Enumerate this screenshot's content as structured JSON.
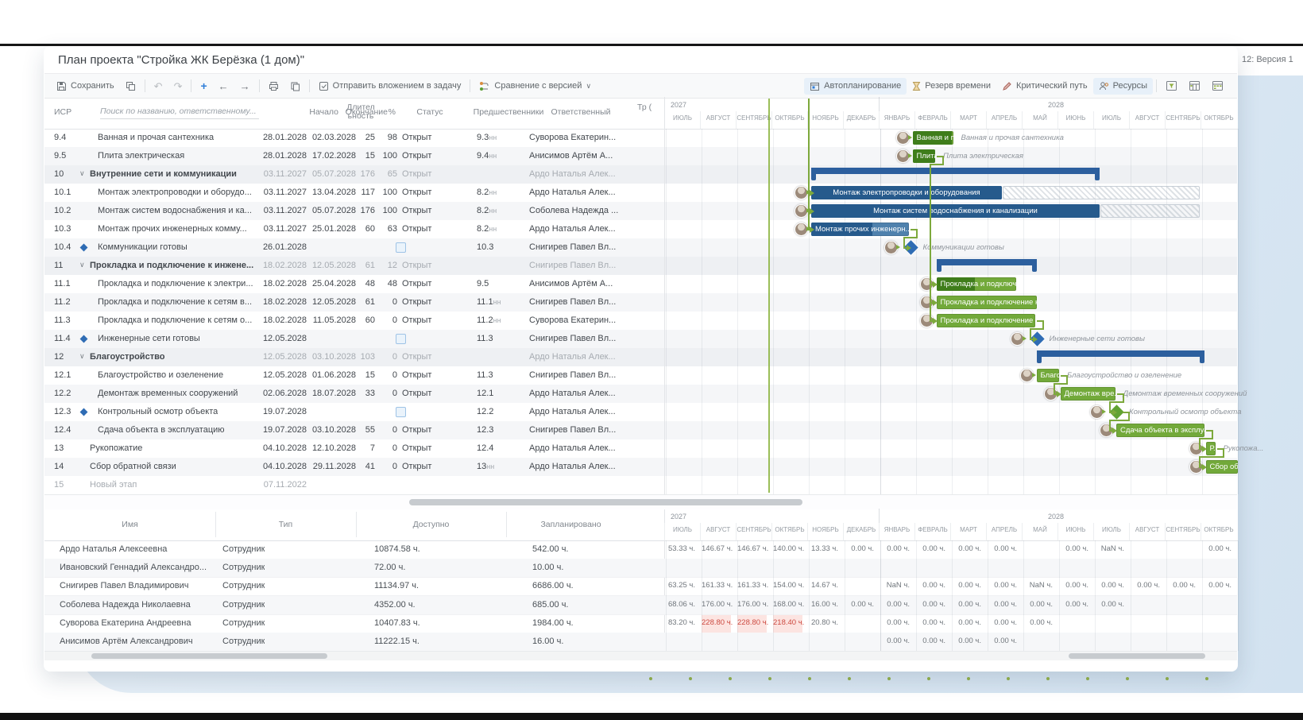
{
  "page": {
    "version_badge": "12: Версия 1"
  },
  "window": {
    "title": "План проекта \"Стройка ЖК Берёзка (1 дом)\""
  },
  "toolbar": {
    "save_label": "Сохранить",
    "send_attachment_label": "Отправить вложением в задачу",
    "compare_label": "Сравнение с версией",
    "autoplan_label": "Автопланирование",
    "reserve_label": "Резерв времени",
    "critical_path_label": "Критический путь",
    "resources_label": "Ресурсы"
  },
  "task_table": {
    "columns": {
      "wbs": "ИСР",
      "search_placeholder": "Поиск по названию, ответственному...",
      "start": "Начало",
      "finish": "Окончание",
      "duration": "Длител ьность",
      "percent": "%",
      "status": "Статус",
      "predecessors": "Предшественники",
      "owner": "Ответственный",
      "labor": "Тр ("
    },
    "rows": [
      {
        "wbs": "9.4",
        "kind": "task",
        "lvl": 2,
        "name": "Ванная и прочая сантехника",
        "start": "28.01.2028",
        "finish": "02.03.2028",
        "dur": "25",
        "pct": "98",
        "status": "Открыт",
        "pred": "9.3",
        "sfx": true,
        "owner": "Суворова Екатерин...",
        "stripe": false,
        "bar": {
          "t": "bar",
          "c": "g",
          "l": "Ванная и п...",
          "a": "Ванная и прочая сантехника"
        }
      },
      {
        "wbs": "9.5",
        "kind": "task",
        "lvl": 2,
        "name": "Плита электрическая",
        "start": "28.01.2028",
        "finish": "17.02.2028",
        "dur": "15",
        "pct": "100",
        "status": "Открыт",
        "pred": "9.4",
        "sfx": true,
        "owner": "Анисимов Артём А...",
        "stripe": true,
        "bar": {
          "t": "bar",
          "c": "g",
          "l": "Плита...",
          "a": "Плита электрическая"
        }
      },
      {
        "wbs": "10",
        "kind": "summary",
        "lvl": 1,
        "name": "Внутренние сети и коммуникации",
        "start": "03.11.2027",
        "finish": "05.07.2028",
        "dur": "176",
        "pct": "65",
        "status": "Открыт",
        "pred": "",
        "sfx": false,
        "owner": "Ардо Наталья Алек...",
        "stripe": false,
        "bar": {
          "t": "sum"
        }
      },
      {
        "wbs": "10.1",
        "kind": "task",
        "lvl": 2,
        "name": "Монтаж электропроводки и оборудо...",
        "start": "03.11.2027",
        "finish": "13.04.2028",
        "dur": "117",
        "pct": "100",
        "status": "Открыт",
        "pred": "8.2",
        "sfx": true,
        "owner": "Ардо Наталья Алек...",
        "stripe": false,
        "bar": {
          "t": "bar",
          "c": "b",
          "l": "Монтаж электропроводки и оборудования",
          "h": "27.09.2028"
        }
      },
      {
        "wbs": "10.2",
        "kind": "task",
        "lvl": 2,
        "name": "Монтаж систем водоснабжения и ка...",
        "start": "03.11.2027",
        "finish": "05.07.2028",
        "dur": "176",
        "pct": "100",
        "status": "Открыт",
        "pred": "8.2",
        "sfx": true,
        "owner": "Соболева Надежда ...",
        "stripe": true,
        "bar": {
          "t": "bar",
          "c": "b",
          "l": "Монтаж систем водоснабжения и канализации",
          "h": "27.09.2028"
        }
      },
      {
        "wbs": "10.3",
        "kind": "task",
        "lvl": 2,
        "name": "Монтаж прочих инженерных комму...",
        "start": "03.11.2027",
        "finish": "25.01.2028",
        "dur": "60",
        "pct": "63",
        "status": "Открыт",
        "pred": "8.2",
        "sfx": true,
        "owner": "Ардо Наталья Алек...",
        "stripe": false,
        "bar": {
          "t": "bar",
          "c": "b",
          "l": "Монтаж прочих инженерн..."
        }
      },
      {
        "wbs": "10.4",
        "kind": "milestone",
        "lvl": 2,
        "name": "Коммуникации готовы",
        "start": "26.01.2028",
        "finish": "",
        "dur": "",
        "pct": "",
        "status": "",
        "pred": "10.3",
        "sfx": false,
        "owner": "Снигирев Павел Вл...",
        "stripe": true,
        "bar": {
          "t": "mile",
          "c": "b",
          "a": "Коммуникации готовы"
        }
      },
      {
        "wbs": "11",
        "kind": "summary",
        "lvl": 1,
        "name": "Прокладка и подключение к инжене...",
        "start": "18.02.2028",
        "finish": "12.05.2028",
        "dur": "61",
        "pct": "12",
        "status": "Открыт",
        "pred": "",
        "sfx": false,
        "owner": "Снигирев Павел Вл...",
        "stripe": false,
        "bar": {
          "t": "sum"
        }
      },
      {
        "wbs": "11.1",
        "kind": "task",
        "lvl": 2,
        "name": "Прокладка и подключение к электри...",
        "start": "18.02.2028",
        "finish": "25.04.2028",
        "dur": "48",
        "pct": "48",
        "status": "Открыт",
        "pred": "9.5",
        "sfx": false,
        "owner": "Анисимов Артём А...",
        "stripe": false,
        "bar": {
          "t": "bar",
          "c": "g",
          "l": "Прокладка и подключ..."
        }
      },
      {
        "wbs": "11.2",
        "kind": "task",
        "lvl": 2,
        "name": "Прокладка и подключение к сетям в...",
        "start": "18.02.2028",
        "finish": "12.05.2028",
        "dur": "61",
        "pct": "0",
        "status": "Открыт",
        "pred": "11.1",
        "sfx": true,
        "owner": "Снигирев Павел Вл...",
        "stripe": true,
        "bar": {
          "t": "bar",
          "c": "g",
          "l": "Прокладка и подключение к..."
        }
      },
      {
        "wbs": "11.3",
        "kind": "task",
        "lvl": 2,
        "name": "Прокладка и подключение к сетям о...",
        "start": "18.02.2028",
        "finish": "11.05.2028",
        "dur": "60",
        "pct": "0",
        "status": "Открыт",
        "pred": "11.2",
        "sfx": true,
        "owner": "Суворова Екатерин...",
        "stripe": false,
        "bar": {
          "t": "bar",
          "c": "g",
          "l": "Прокладка и подключение ..."
        }
      },
      {
        "wbs": "11.4",
        "kind": "milestone",
        "lvl": 2,
        "name": "Инженерные сети готовы",
        "start": "12.05.2028",
        "finish": "",
        "dur": "",
        "pct": "",
        "status": "",
        "pred": "11.3",
        "sfx": false,
        "owner": "Снигирев Павел Вл...",
        "stripe": true,
        "bar": {
          "t": "mile",
          "c": "b",
          "a": "Инженерные сети готовы"
        }
      },
      {
        "wbs": "12",
        "kind": "summary",
        "lvl": 1,
        "name": "Благоустройство",
        "start": "12.05.2028",
        "finish": "03.10.2028",
        "dur": "103",
        "pct": "0",
        "status": "Открыт",
        "pred": "",
        "sfx": false,
        "owner": "Ардо Наталья Алек...",
        "stripe": false,
        "bar": {
          "t": "sum"
        }
      },
      {
        "wbs": "12.1",
        "kind": "task",
        "lvl": 2,
        "name": "Благоустройство и озеленение",
        "start": "12.05.2028",
        "finish": "01.06.2028",
        "dur": "15",
        "pct": "0",
        "status": "Открыт",
        "pred": "11.3",
        "sfx": false,
        "owner": "Снигирев Павел Вл...",
        "stripe": false,
        "bar": {
          "t": "bar",
          "c": "g",
          "l": "Благо...",
          "a": "Благоустройство и озеленение"
        }
      },
      {
        "wbs": "12.2",
        "kind": "task",
        "lvl": 2,
        "name": "Демонтаж временных сооружений",
        "start": "02.06.2028",
        "finish": "18.07.2028",
        "dur": "33",
        "pct": "0",
        "status": "Открыт",
        "pred": "12.1",
        "sfx": false,
        "owner": "Ардо Наталья Алек...",
        "stripe": true,
        "bar": {
          "t": "bar",
          "c": "g",
          "l": "Демонтаж вре...",
          "a": "Демонтаж временных сооружений"
        }
      },
      {
        "wbs": "12.3",
        "kind": "milestone",
        "lvl": 2,
        "name": "Контрольный осмотр объекта",
        "start": "19.07.2028",
        "finish": "",
        "dur": "",
        "pct": "",
        "status": "",
        "pred": "12.2",
        "sfx": false,
        "owner": "Ардо Наталья Алек...",
        "stripe": false,
        "bar": {
          "t": "mile",
          "c": "g",
          "a": "Контрольный осмотр объекта"
        }
      },
      {
        "wbs": "12.4",
        "kind": "task",
        "lvl": 2,
        "name": "Сдача объекта в эксплуатацию",
        "start": "19.07.2028",
        "finish": "03.10.2028",
        "dur": "55",
        "pct": "0",
        "status": "Открыт",
        "pred": "12.3",
        "sfx": false,
        "owner": "Снигирев Павел Вл...",
        "stripe": true,
        "bar": {
          "t": "bar",
          "c": "g",
          "l": "Сдача объекта в эксплуат..."
        }
      },
      {
        "wbs": "13",
        "kind": "task",
        "lvl": 1,
        "name": "Рукопожатие",
        "start": "04.10.2028",
        "finish": "12.10.2028",
        "dur": "7",
        "pct": "0",
        "status": "Открыт",
        "pred": "12.4",
        "sfx": false,
        "owner": "Ардо Наталья Алек...",
        "stripe": false,
        "bar": {
          "t": "bar",
          "c": "g",
          "l": "Р...",
          "a": "Рукопожа..."
        }
      },
      {
        "wbs": "14",
        "kind": "task",
        "lvl": 1,
        "name": "Сбор обратной связи",
        "start": "04.10.2028",
        "finish": "29.11.2028",
        "dur": "41",
        "pct": "0",
        "status": "Открыт",
        "pred": "13",
        "sfx": true,
        "owner": "Ардо Наталья Алек...",
        "stripe": true,
        "bar": {
          "t": "bar",
          "c": "g",
          "l": "Сбор обрат..."
        }
      },
      {
        "wbs": "15",
        "kind": "new",
        "lvl": 1,
        "name": "Новый этап",
        "start": "07.11.2022",
        "finish": "",
        "dur": "",
        "pct": "",
        "status": "",
        "pred": "",
        "sfx": false,
        "owner": "",
        "stripe": false,
        "bar": null
      }
    ]
  },
  "gantt": {
    "years": [
      {
        "label": "2027",
        "months": [
          "ИЮЛЬ",
          "АВГУСТ",
          "СЕНТЯБРЬ",
          "ОКТЯБРЬ",
          "НОЯБРЬ",
          "ДЕКАБРЬ"
        ]
      },
      {
        "label": "2028",
        "months": [
          "ЯНВАРЬ",
          "ФЕВРАЛЬ",
          "МАРТ",
          "АПРЕЛЬ",
          "МАЙ",
          "ИЮНЬ",
          "ИЮЛЬ",
          "АВГУСТ",
          "СЕНТЯБРЬ",
          "ОКТЯБРЬ"
        ]
      }
    ],
    "connectors": [
      {
        "from": null,
        "x_date": "03.11.2027",
        "targets": [
          "10.1",
          "10.2",
          "10.3"
        ]
      },
      {
        "from": "9.5",
        "targets": [
          "11.1",
          "11.2",
          "11.3"
        ]
      },
      {
        "from": "10.3",
        "targets": [
          "10.4"
        ]
      },
      {
        "from": "11.3",
        "targets": [
          "11.4"
        ]
      },
      {
        "from": "12.1",
        "targets": [
          "12.2"
        ]
      },
      {
        "from": "12.2",
        "targets": [
          "12.3"
        ]
      },
      {
        "from": "12.3",
        "targets": [
          "12.4"
        ]
      },
      {
        "from": "12.4",
        "targets": [
          "13"
        ]
      },
      {
        "from": "13",
        "targets": [
          "14"
        ]
      }
    ],
    "colors": {
      "bar_green": "#72a93a",
      "bar_green_done": "#3f7d1b",
      "bar_blue": "#4f81ad",
      "bar_blue_done": "#265a8c",
      "summary": "#2c5f9e",
      "milestone_blue": "#2f6cb4",
      "milestone_green": "#61a233",
      "today_line": "#8ab33c",
      "connector": "#7da93c"
    }
  },
  "resource_table": {
    "columns": {
      "name": "Имя",
      "type": "Тип",
      "available": "Доступно",
      "planned": "Запланировано"
    },
    "rows": [
      {
        "name": "Ардо Наталья Алексеевна",
        "type": "Сотрудник",
        "available": "10874.58 ч.",
        "planned": "542.00 ч."
      },
      {
        "name": "Ивановский Геннадий Александро...",
        "type": "Сотрудник",
        "available": "72.00 ч.",
        "planned": "10.00 ч."
      },
      {
        "name": "Снигирев Павел Владимирович",
        "type": "Сотрудник",
        "available": "11134.97 ч.",
        "planned": "6686.00 ч."
      },
      {
        "name": "Соболева Надежда Николаевна",
        "type": "Сотрудник",
        "available": "4352.00 ч.",
        "planned": "685.00 ч."
      },
      {
        "name": "Суворова Екатерина Андреевна",
        "type": "Сотрудник",
        "available": "10407.83 ч.",
        "planned": "1984.00 ч."
      },
      {
        "name": "Анисимов Артём Александрович",
        "type": "Сотрудник",
        "available": "11222.15 ч.",
        "planned": "16.00 ч."
      }
    ],
    "hours_suffix": " ч."
  },
  "resource_grid": {
    "rows": [
      {
        "values": [
          "53.33",
          "146.67",
          "146.67",
          "140.00",
          "13.33",
          "0.00",
          "0.00",
          "0.00",
          "0.00",
          "0.00",
          null,
          "0.00",
          "NaN",
          null,
          null,
          "0.00"
        ],
        "red": []
      },
      {
        "values": [
          null,
          null,
          null,
          null,
          null,
          null,
          null,
          null,
          null,
          null,
          null,
          null,
          null,
          null,
          null,
          null
        ],
        "red": []
      },
      {
        "values": [
          "63.25",
          "161.33",
          "161.33",
          "154.00",
          "14.67",
          null,
          "NaN",
          "0.00",
          "0.00",
          "0.00",
          "NaN",
          "0.00",
          "0.00",
          "0.00",
          "0.00",
          "0.00"
        ],
        "red": []
      },
      {
        "values": [
          "68.06",
          "176.00",
          "176.00",
          "168.00",
          "16.00",
          "0.00",
          "0.00",
          "0.00",
          "0.00",
          "0.00",
          "0.00",
          "0.00",
          "0.00",
          null,
          null,
          null
        ],
        "red": []
      },
      {
        "values": [
          "83.20",
          "228.80",
          "228.80",
          "218.40",
          "20.80",
          null,
          "0.00",
          "0.00",
          "0.00",
          "0.00",
          "0.00",
          null,
          null,
          null,
          null,
          null
        ],
        "red": [
          1,
          2,
          3
        ]
      },
      {
        "values": [
          null,
          null,
          null,
          null,
          null,
          null,
          "0.00",
          "0.00",
          "0.00",
          "0.00",
          null,
          null,
          null,
          null,
          null,
          null
        ],
        "red": []
      }
    ]
  }
}
